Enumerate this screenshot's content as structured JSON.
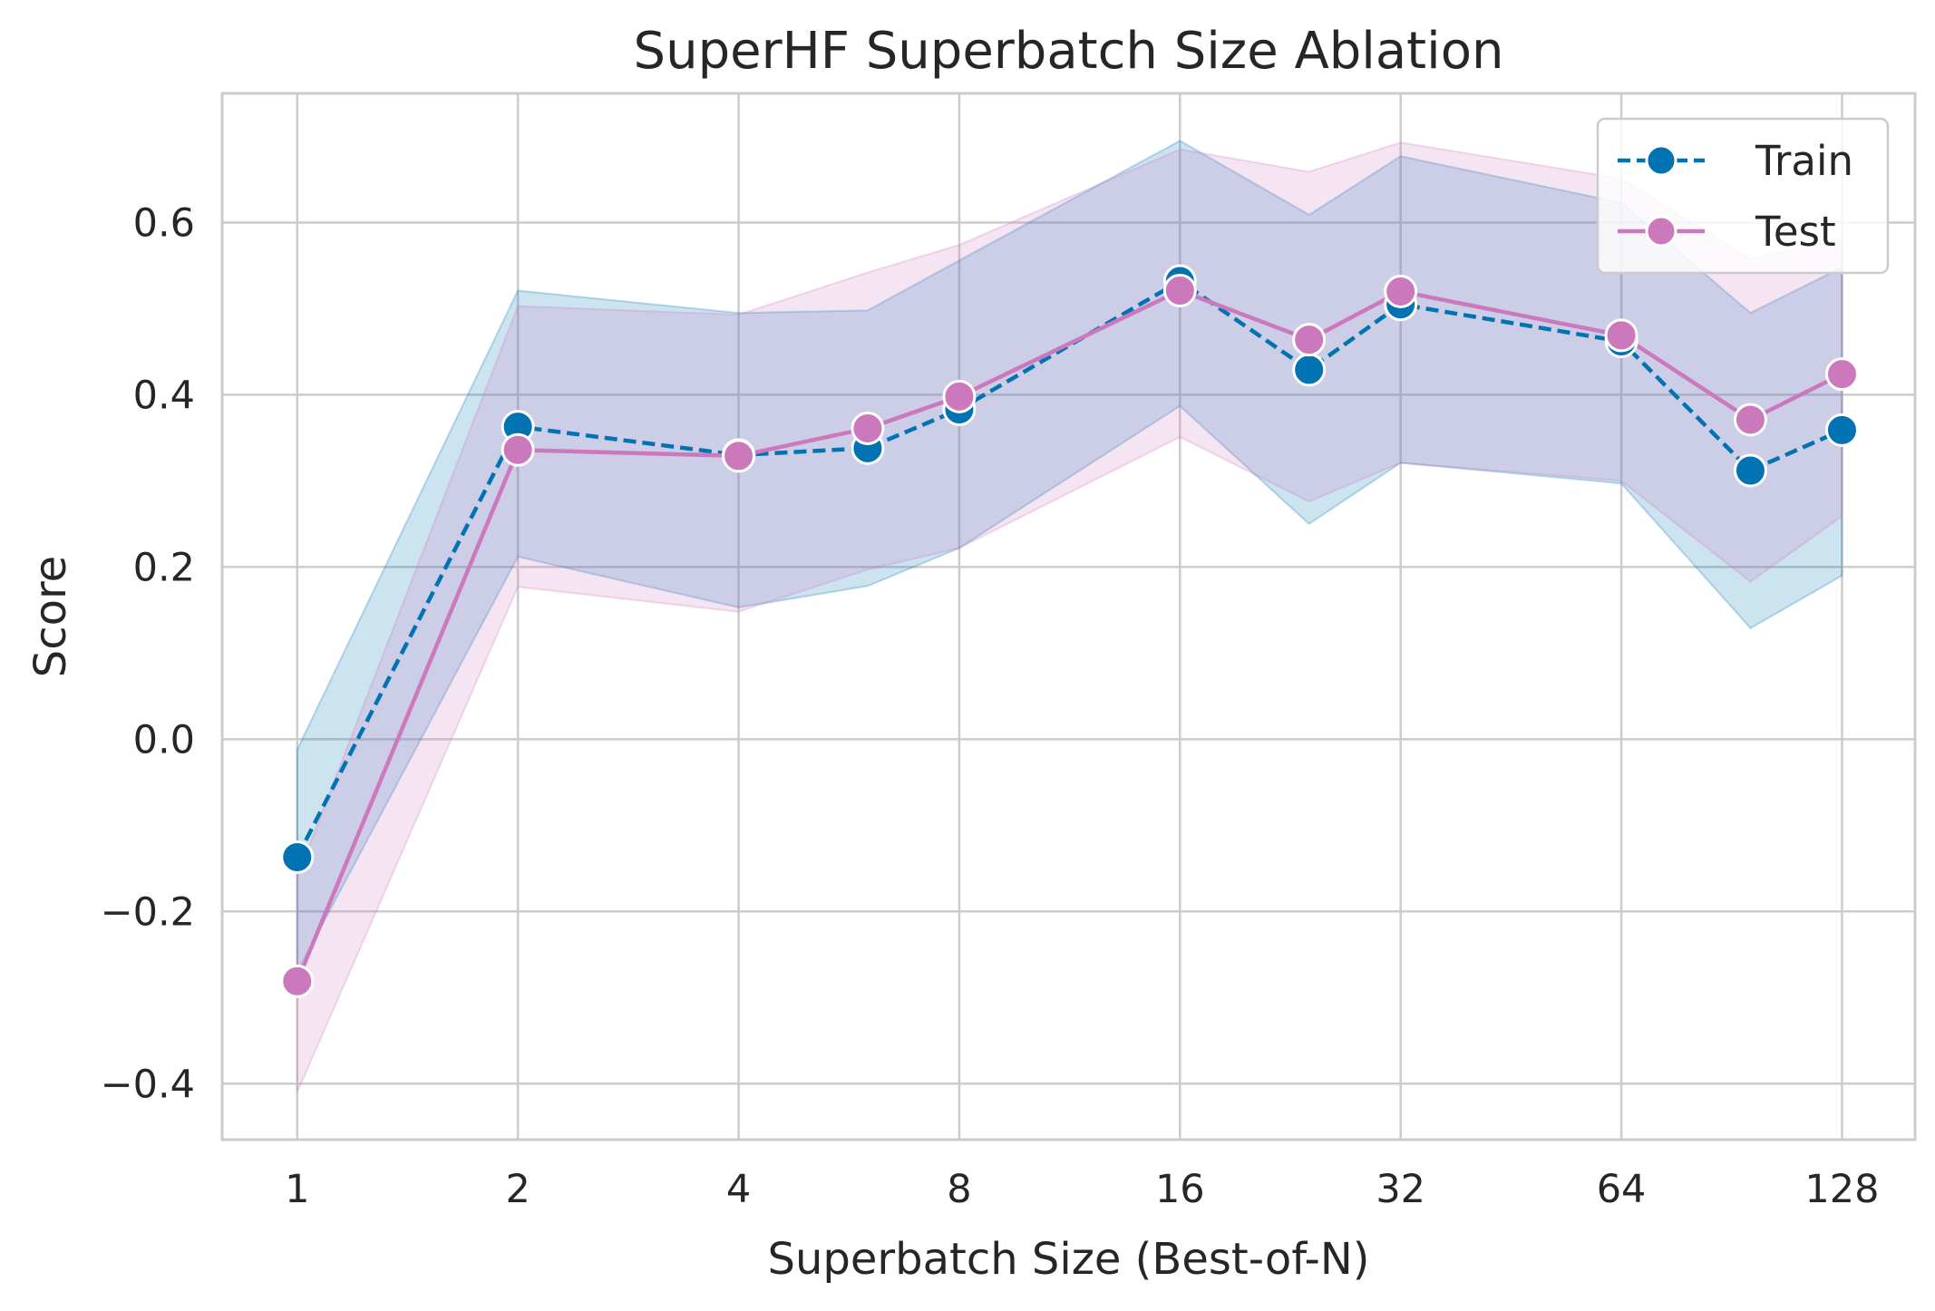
{
  "chart_data": {
    "type": "line",
    "title": "SuperHF Superbatch Size Ablation",
    "xlabel": "Superbatch Size (Best-of-N)",
    "ylabel": "Score",
    "x_scale": "log2",
    "xlim": [
      0.79,
      161
    ],
    "ylim": [
      -0.465,
      0.75
    ],
    "xticks": [
      1,
      2,
      4,
      8,
      16,
      32,
      64,
      128
    ],
    "xtick_labels": [
      "1",
      "2",
      "4",
      "8",
      "16",
      "32",
      "64",
      "128"
    ],
    "yticks": [
      -0.4,
      -0.2,
      0.0,
      0.2,
      0.4,
      0.6
    ],
    "ytick_labels": [
      "−0.4",
      "−0.2",
      "0.0",
      "0.2",
      "0.4",
      "0.6"
    ],
    "grid": true,
    "legend_position": "top-right",
    "series": [
      {
        "name": "Train",
        "color": "#0173b2",
        "linestyle": "dashed",
        "marker": "circle",
        "x": [
          1,
          2,
          4,
          6,
          8,
          16,
          24,
          32,
          64,
          96,
          128
        ],
        "values": [
          -0.137,
          0.363,
          0.33,
          0.338,
          0.383,
          0.532,
          0.429,
          0.505,
          0.462,
          0.312,
          0.359
        ],
        "ci_lower": [
          -0.27,
          0.212,
          0.153,
          0.178,
          0.222,
          0.387,
          0.25,
          0.321,
          0.297,
          0.129,
          0.19
        ],
        "ci_upper": [
          -0.012,
          0.521,
          0.495,
          0.498,
          0.556,
          0.695,
          0.609,
          0.677,
          0.623,
          0.495,
          0.548
        ]
      },
      {
        "name": "Test",
        "color": "#cc78bc",
        "linestyle": "solid",
        "marker": "circle",
        "x": [
          1,
          2,
          4,
          6,
          8,
          16,
          24,
          32,
          64,
          96,
          128
        ],
        "values": [
          -0.281,
          0.336,
          0.329,
          0.361,
          0.398,
          0.521,
          0.464,
          0.52,
          0.469,
          0.371,
          0.424
        ],
        "ci_lower": [
          -0.41,
          0.177,
          0.148,
          0.197,
          0.222,
          0.351,
          0.276,
          0.321,
          0.3,
          0.183,
          0.259
        ],
        "ci_upper": [
          -0.16,
          0.503,
          0.493,
          0.542,
          0.574,
          0.685,
          0.659,
          0.693,
          0.651,
          0.558,
          0.581
        ]
      }
    ]
  }
}
